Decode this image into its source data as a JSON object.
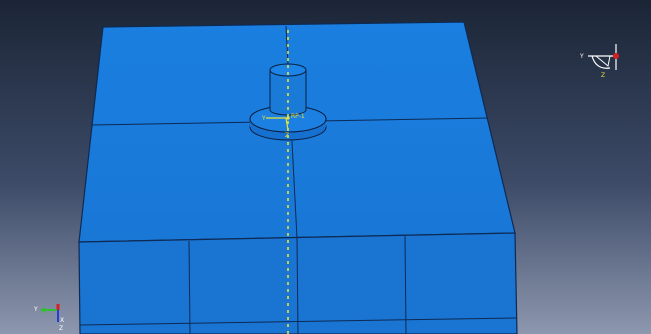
{
  "viewport": {
    "reference_point_label": "RP-1",
    "top_triad": {
      "x_label": "Y",
      "y_label": "X",
      "z_label": "Z"
    },
    "bottom_triad": {
      "x_label": "Y",
      "y_label": "X",
      "z_label": "Z"
    }
  },
  "colors": {
    "background_top": "#1b2536",
    "background_mid": "#3d4b68",
    "background_bottom": "#8d97ae",
    "part_fill": "#1a7cdc",
    "part_fill_front": "#1669c2",
    "mesh_line": "#0d2a55",
    "axis_line": "#e8e23a",
    "triad_green": "#2fbf2f",
    "triad_red": "#d42020",
    "triad_blue": "#2240d8"
  }
}
